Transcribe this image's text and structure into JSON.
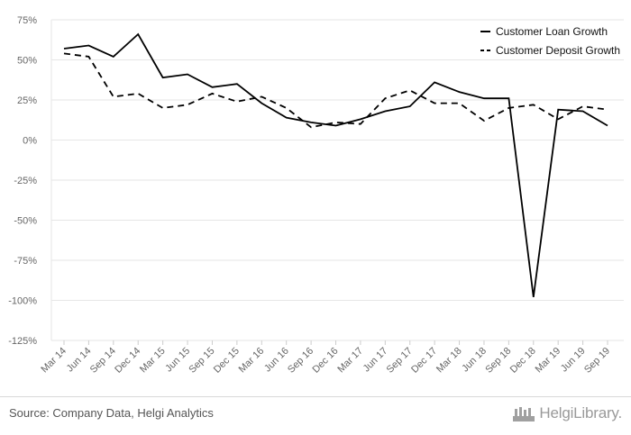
{
  "chart_data": {
    "type": "line",
    "categories": [
      "Mar 14",
      "Jun 14",
      "Sep 14",
      "Dec 14",
      "Mar 15",
      "Jun 15",
      "Sep 15",
      "Dec 15",
      "Mar 16",
      "Jun 16",
      "Sep 16",
      "Dec 16",
      "Mar 17",
      "Jun 17",
      "Sep 17",
      "Dec 17",
      "Mar 18",
      "Jun 18",
      "Sep 18",
      "Dec 18",
      "Mar 19",
      "Jun 19",
      "Sep 19"
    ],
    "series": [
      {
        "name": "Customer Loan Growth",
        "dash": "solid",
        "values": [
          57,
          59,
          52,
          66,
          39,
          41,
          33,
          35,
          23,
          14,
          11,
          9,
          13,
          18,
          21,
          36,
          30,
          26,
          26,
          -98,
          19,
          18,
          9
        ]
      },
      {
        "name": "Customer Deposit Growth",
        "dash": "dashed",
        "values": [
          54,
          52,
          27,
          29,
          20,
          22,
          29,
          24,
          27,
          20,
          8,
          11,
          10,
          26,
          31,
          23,
          23,
          12,
          20,
          22,
          13,
          21,
          19
        ]
      }
    ],
    "yticks": [
      "75%",
      "50%",
      "25%",
      "0%",
      "-25%",
      "-50%",
      "-75%",
      "-100%",
      "-125%"
    ],
    "ylim": [
      -125,
      75
    ],
    "ytick_values": [
      75,
      50,
      25,
      0,
      -25,
      -50,
      -75,
      -100,
      -125
    ],
    "grid": true,
    "legend_position": "top-right",
    "colors": {
      "line": "#000000",
      "grid": "#e6e6e6",
      "axis_text": "#666666"
    }
  },
  "footer": {
    "source": "Source: Company Data, Helgi Analytics",
    "brand": "HelgiLibrary."
  }
}
